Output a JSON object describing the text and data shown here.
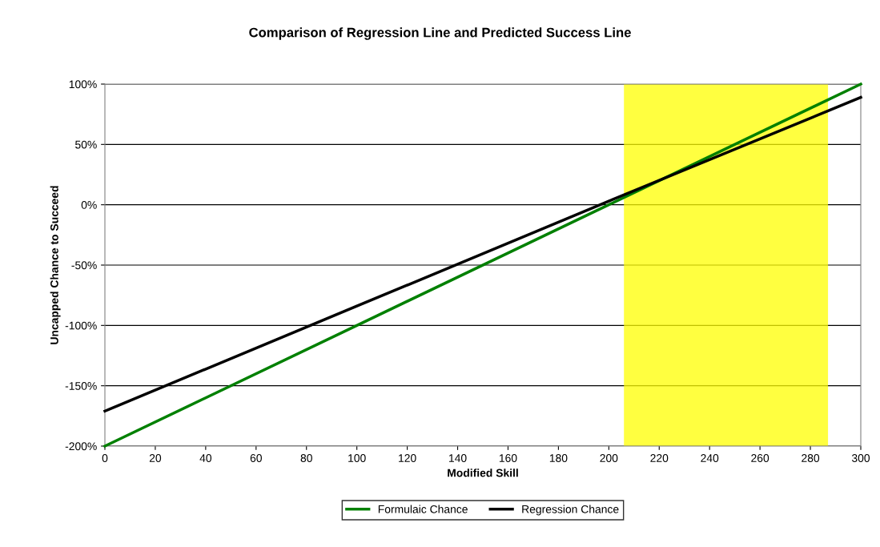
{
  "chart_data": {
    "type": "line",
    "title": "Comparison of Regression Line and Predicted Success Line",
    "xlabel": "Modified Skill",
    "ylabel": "Uncapped Chance to Succeed",
    "series": [
      {
        "name": "Formulaic Chance",
        "color": "#008000",
        "x": [
          0,
          100,
          200,
          300
        ],
        "values": [
          -200,
          -100,
          0,
          100
        ]
      },
      {
        "name": "Regression Chance",
        "color": "#000000",
        "x": [
          0,
          100,
          200,
          300
        ],
        "values": [
          -171,
          -84,
          3,
          89
        ]
      }
    ],
    "xlim": [
      0,
      300
    ],
    "xticks": [
      0,
      20,
      40,
      60,
      80,
      100,
      120,
      140,
      160,
      180,
      200,
      220,
      240,
      260,
      280,
      300
    ],
    "ylim": [
      -200,
      100
    ],
    "yticks": [
      {
        "value": -200,
        "label": "-200%"
      },
      {
        "value": -150,
        "label": "-150%"
      },
      {
        "value": -100,
        "label": "-100%"
      },
      {
        "value": -50,
        "label": "-50%"
      },
      {
        "value": 0,
        "label": "0%"
      },
      {
        "value": 50,
        "label": "50%"
      },
      {
        "value": 100,
        "label": "100%"
      }
    ],
    "bands": [
      {
        "axis": "x",
        "from": 206,
        "to": 287,
        "color": "#ffff00"
      }
    ],
    "grid": "y",
    "legend": "bottom",
    "marker": "none",
    "line_style": "solid"
  }
}
